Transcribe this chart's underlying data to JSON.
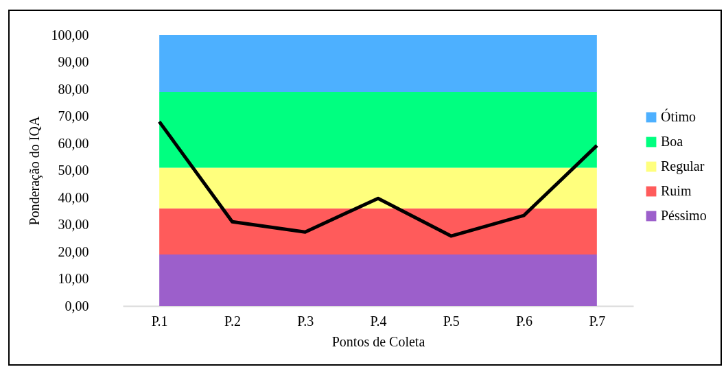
{
  "chart_data": {
    "type": "area",
    "stacked": true,
    "xlabel": "Pontos de Coleta",
    "ylabel": "Ponderação do IQA",
    "categories": [
      "P.1",
      "P.2",
      "P.3",
      "P.4",
      "P.5",
      "P.6",
      "P.7"
    ],
    "series": [
      {
        "name": "Péssimo",
        "color": "#9c5fcb",
        "values": [
          19,
          19,
          19,
          19,
          19,
          19,
          19
        ]
      },
      {
        "name": "Ruim",
        "color": "#ff5b5b",
        "values": [
          17,
          17,
          17,
          17,
          17,
          17,
          17
        ]
      },
      {
        "name": "Regular",
        "color": "#ffff7d",
        "values": [
          15,
          15,
          15,
          15,
          15,
          15,
          15
        ]
      },
      {
        "name": "Boa",
        "color": "#00ff80",
        "values": [
          28,
          28,
          28,
          28,
          28,
          28,
          28
        ]
      },
      {
        "name": "Ótimo",
        "color": "#4db0ff",
        "values": [
          21,
          21,
          21,
          21,
          21,
          21,
          21
        ]
      },
      {
        "type": "line",
        "color": "#000000",
        "values": [
          68,
          31.1,
          27.3,
          39.7,
          25.8,
          33.4,
          59.2
        ]
      }
    ],
    "ylim": [
      0,
      100
    ],
    "yticks": [
      {
        "value": 0,
        "label": "0,00"
      },
      {
        "value": 10,
        "label": "10,00"
      },
      {
        "value": 20,
        "label": "20,00"
      },
      {
        "value": 30,
        "label": "30,00"
      },
      {
        "value": 40,
        "label": "40,00"
      },
      {
        "value": 50,
        "label": "50,00"
      },
      {
        "value": 60,
        "label": "60,00"
      },
      {
        "value": 70,
        "label": "70,00"
      },
      {
        "value": 80,
        "label": "80,00"
      },
      {
        "value": 90,
        "label": "90,00"
      },
      {
        "value": 100,
        "label": "100,00"
      }
    ],
    "grid": false,
    "legend": "right"
  }
}
